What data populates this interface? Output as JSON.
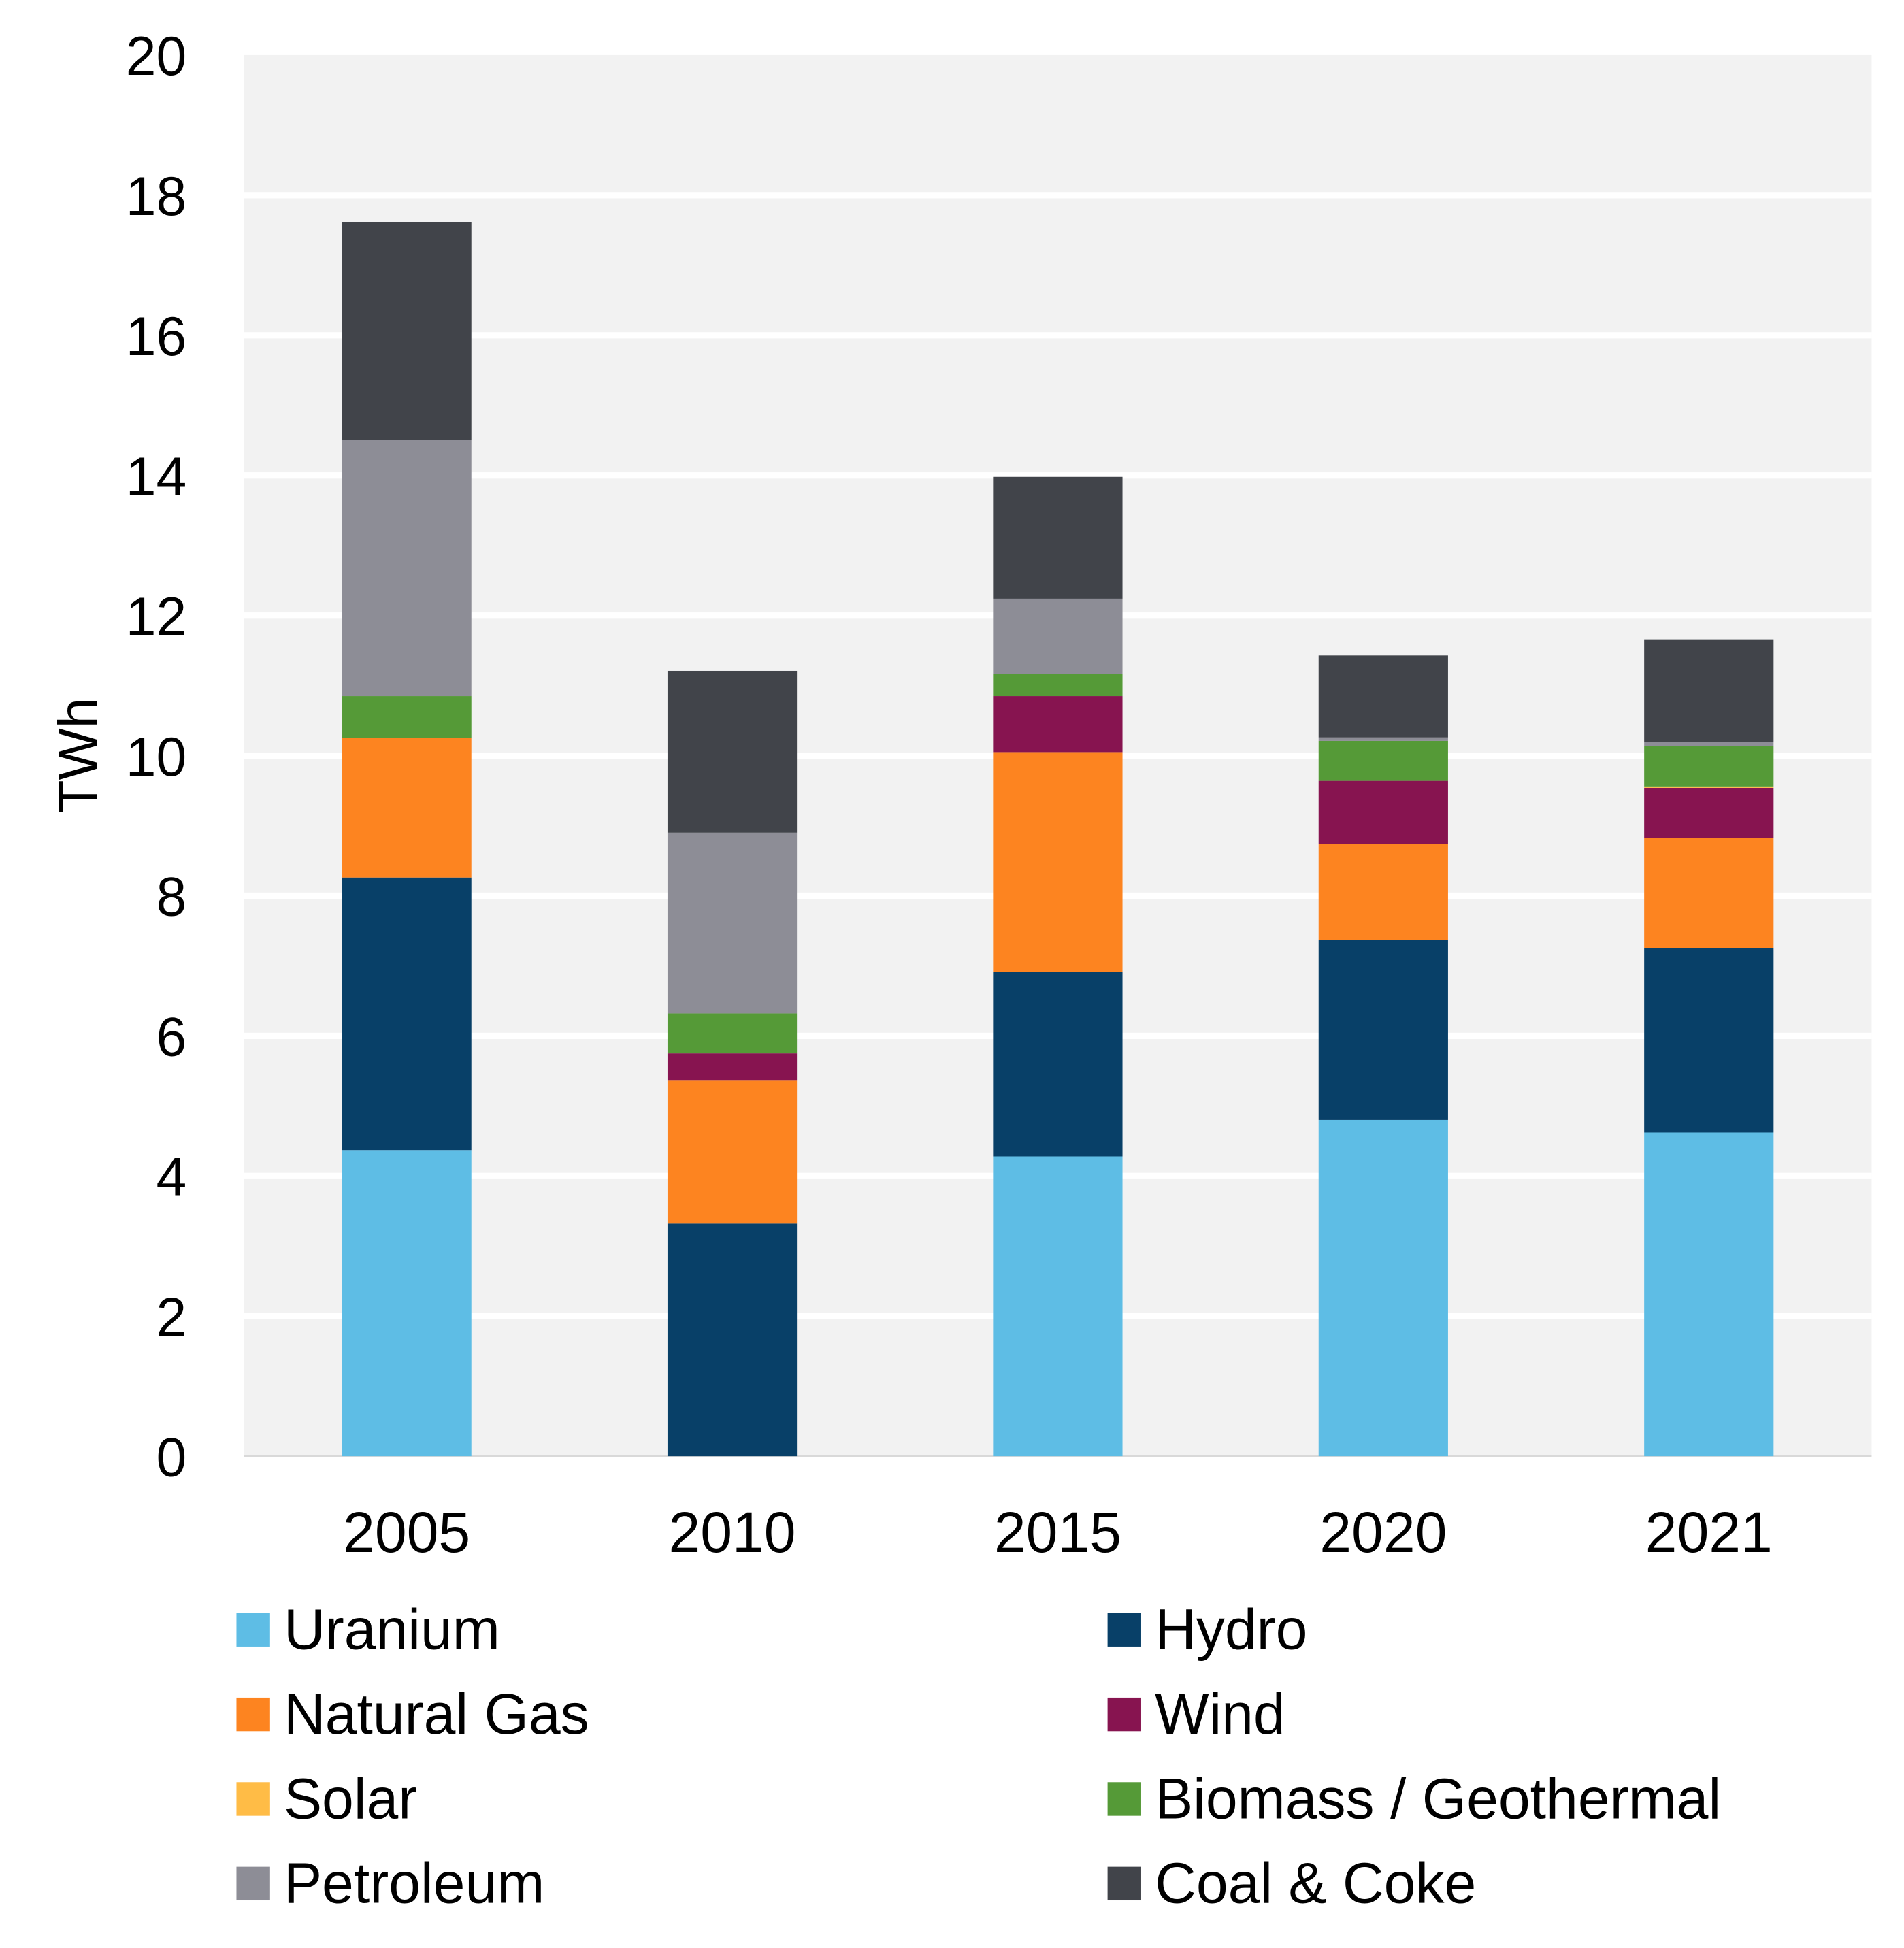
{
  "chart_data": {
    "type": "bar",
    "stacked": true,
    "title": "",
    "xlabel": "",
    "ylabel": "TWh",
    "ylim": [
      0,
      20
    ],
    "yticks": [
      "0",
      "2",
      "4",
      "6",
      "8",
      "10",
      "12",
      "14",
      "16",
      "18",
      "20"
    ],
    "grid": true,
    "legend_position": "bottom",
    "categories": [
      "2005",
      "2010",
      "2015",
      "2020",
      "2021"
    ],
    "series": [
      {
        "name": "Uranium",
        "color": "#5EBDE5",
        "values": [
          4.37,
          0,
          4.28,
          4.8,
          4.62
        ]
      },
      {
        "name": "Hydro",
        "color": "#084068",
        "values": [
          3.89,
          3.32,
          2.63,
          2.57,
          2.63
        ]
      },
      {
        "name": "Natural Gas",
        "color": "#FD8420",
        "values": [
          1.99,
          2.04,
          3.14,
          1.37,
          1.58
        ]
      },
      {
        "name": "Wind",
        "color": "#871450",
        "values": [
          0,
          0.39,
          0.8,
          0.9,
          0.71
        ]
      },
      {
        "name": "Solar",
        "color": "#FFBC46",
        "values": [
          0,
          0,
          0,
          0,
          0.02
        ]
      },
      {
        "name": "Biomass / Geothermal",
        "color": "#559A37",
        "values": [
          0.6,
          0.57,
          0.32,
          0.57,
          0.58
        ]
      },
      {
        "name": "Petroleum",
        "color": "#8D8D96",
        "values": [
          3.66,
          2.58,
          1.07,
          0.05,
          0.05
        ]
      },
      {
        "name": "Coal & Coke",
        "color": "#41444A",
        "values": [
          3.11,
          2.31,
          1.74,
          1.17,
          1.47
        ]
      }
    ],
    "plot_background": "#F2F2F2"
  }
}
